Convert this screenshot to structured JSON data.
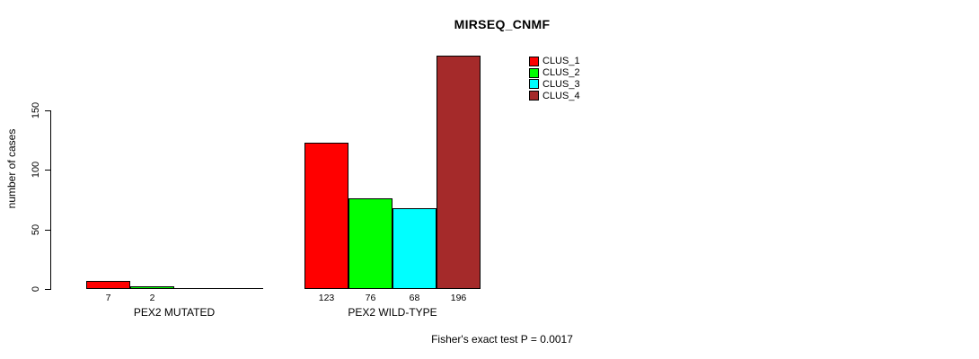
{
  "page": {
    "background_color": "#ffffff",
    "text_color": "#000000"
  },
  "chart_data": {
    "type": "bar",
    "title": "MIRSEQ_CNMF",
    "xlabel": "",
    "ylabel": "number of cases",
    "ylim": [
      0,
      150
    ],
    "yticks": [
      0,
      50,
      100,
      150
    ],
    "grid": false,
    "legend_position": "top-right",
    "categories": [
      "PEX2 MUTATED",
      "PEX2 WILD-TYPE"
    ],
    "series": [
      {
        "name": "CLUS_1",
        "color": "#FF0000",
        "values": [
          7,
          123
        ]
      },
      {
        "name": "CLUS_2",
        "color": "#00FF00",
        "values": [
          2,
          76
        ]
      },
      {
        "name": "CLUS_3",
        "color": "#00FFFF",
        "values": [
          0,
          68
        ]
      },
      {
        "name": "CLUS_4",
        "color": "#A52A2A",
        "values": [
          0,
          196
        ]
      }
    ],
    "bar_value_labels_shown": [
      [
        7,
        2
      ],
      [
        123,
        76,
        68,
        196
      ]
    ],
    "annotation": "Fisher's exact test P = 0.0017"
  }
}
